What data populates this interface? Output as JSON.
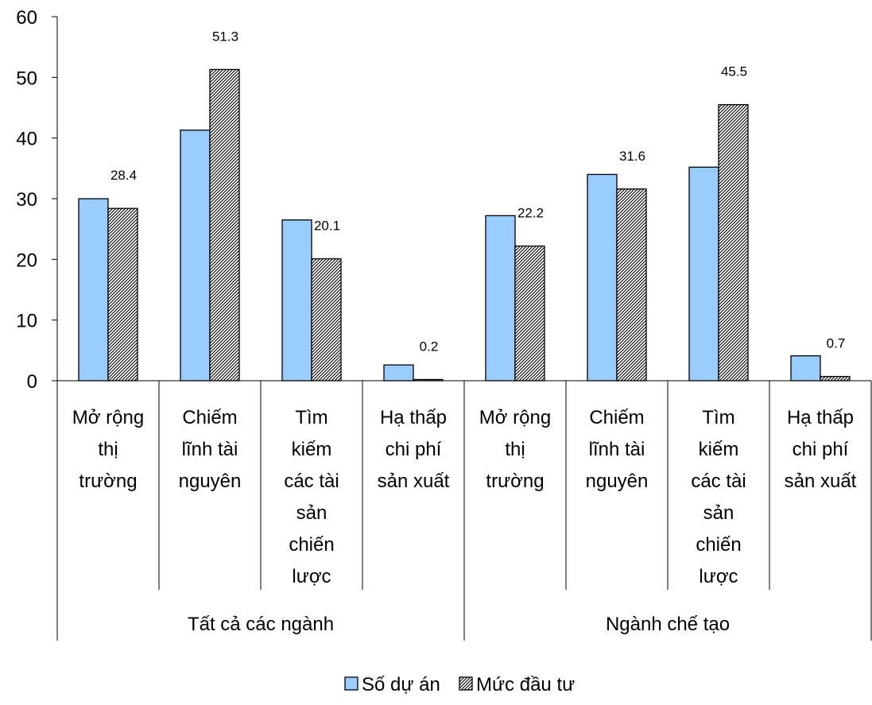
{
  "chart_data": {
    "type": "bar",
    "ylim": [
      0,
      60
    ],
    "yticks": [
      "0",
      "10",
      "20",
      "30",
      "40",
      "50",
      "60"
    ],
    "groups": [
      "Tất cả các ngành",
      "Ngành chế tạo"
    ],
    "categories": [
      [
        "Mở rộng",
        "thị",
        "trường"
      ],
      [
        "Chiếm",
        "lĩnh tài",
        "nguyên"
      ],
      [
        "Tìm",
        "kiếm",
        "các tài",
        "sản",
        "chiến",
        "lược"
      ],
      [
        "Hạ thấp",
        "chi phí",
        "sản xuất"
      ],
      [
        "Mở rộng",
        "thị",
        "trường"
      ],
      [
        "Chiếm",
        "lĩnh tài",
        "nguyên"
      ],
      [
        "Tìm",
        "kiếm",
        "các tài",
        "sản",
        "chiến",
        "lược"
      ],
      [
        "Hạ thấp",
        "chi phí",
        "sản xuất"
      ]
    ],
    "series": [
      {
        "name": "Số dự án",
        "color": "#99CCFF",
        "pattern": "solid",
        "values": [
          30,
          41.3,
          26.5,
          2.6,
          27.2,
          34,
          35.2,
          4.1
        ]
      },
      {
        "name": "Mức đầu tư",
        "color": "#000000",
        "pattern": "diagonal-hatch",
        "values": [
          28.4,
          51.3,
          20.1,
          0.2,
          22.2,
          31.6,
          45.5,
          0.7
        ],
        "data_labels": [
          "28.4",
          "51.3",
          "20.1",
          "0.2",
          "22.2",
          "31.6",
          "45.5",
          "0.7"
        ]
      }
    ],
    "legend": "bottom-center",
    "grid": false
  }
}
